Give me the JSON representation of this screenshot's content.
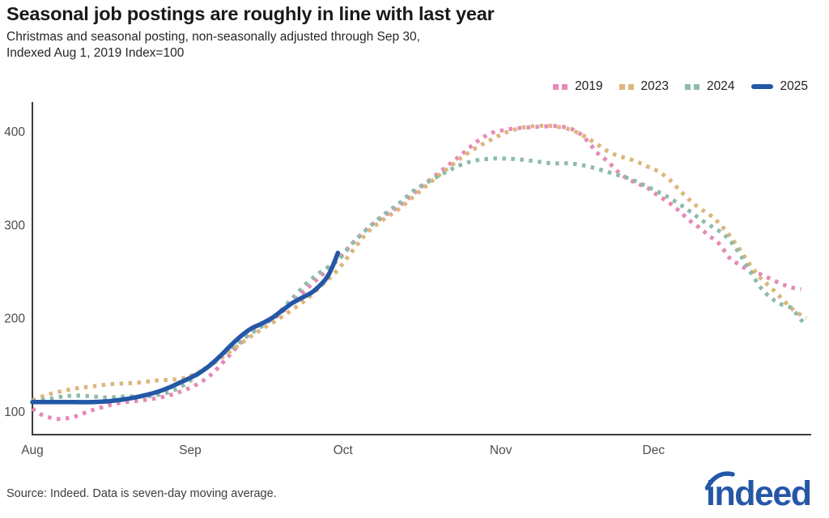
{
  "title": "Seasonal job postings are roughly in line with last year",
  "subtitle_line1": "Christmas and seasonal posting, non-seasonally adjusted through Sep 30,",
  "subtitle_line2": "Indexed Aug 1, 2019 Index=100",
  "source": "Source: Indeed. Data is seven-day moving average.",
  "logo_text": "indeed",
  "colors": {
    "brand_blue": "#2557a7",
    "pink_2019": "#e68ab8",
    "tan_2023": "#dcb67d",
    "teal_2024": "#8ebbac",
    "blue_2025": "#2557a7",
    "spine": "#3b3b3b",
    "tick_text": "#4d4d4d"
  },
  "chart_data": {
    "type": "line",
    "title": "Seasonal job postings are roughly in line with last year",
    "xlabel": "",
    "ylabel": "",
    "x_unit": "days_from_aug_1",
    "xlim": [
      0,
      152
    ],
    "ylim": [
      76,
      430
    ],
    "grid": false,
    "legend_position": "top-right",
    "x_axis": {
      "ticks": [
        {
          "label": "Aug",
          "day": 0
        },
        {
          "label": "Sep",
          "day": 31
        },
        {
          "label": "Oct",
          "day": 61
        },
        {
          "label": "Nov",
          "day": 92
        },
        {
          "label": "Dec",
          "day": 122
        }
      ]
    },
    "y_axis": {
      "ticks": [
        100,
        200,
        300,
        400
      ]
    },
    "series": [
      {
        "name": "2019",
        "style": "dotted",
        "color": "#e68ab8",
        "points": [
          [
            0,
            103
          ],
          [
            2,
            96
          ],
          [
            5,
            92
          ],
          [
            8,
            94
          ],
          [
            11,
            100
          ],
          [
            14,
            105
          ],
          [
            17,
            109
          ],
          [
            20,
            111
          ],
          [
            23,
            113
          ],
          [
            26,
            116
          ],
          [
            29,
            121
          ],
          [
            32,
            128
          ],
          [
            35,
            139
          ],
          [
            38,
            156
          ],
          [
            41,
            174
          ],
          [
            43,
            185
          ],
          [
            45,
            193
          ],
          [
            48,
            202
          ],
          [
            51,
            217
          ],
          [
            54,
            232
          ],
          [
            57,
            247
          ],
          [
            60,
            263
          ],
          [
            63,
            281
          ],
          [
            66,
            297
          ],
          [
            69,
            309
          ],
          [
            72,
            320
          ],
          [
            75,
            334
          ],
          [
            78,
            348
          ],
          [
            81,
            361
          ],
          [
            84,
            374
          ],
          [
            87,
            388
          ],
          [
            90,
            398
          ],
          [
            93,
            402
          ],
          [
            96,
            404
          ],
          [
            99,
            405
          ],
          [
            103,
            406
          ],
          [
            105,
            404
          ],
          [
            107,
            400
          ],
          [
            109,
            390
          ],
          [
            111,
            377
          ],
          [
            113,
            368
          ],
          [
            115,
            357
          ],
          [
            117,
            349
          ],
          [
            119,
            344
          ],
          [
            121,
            339
          ],
          [
            123,
            331
          ],
          [
            125,
            324
          ],
          [
            127,
            315
          ],
          [
            129,
            305
          ],
          [
            131,
            297
          ],
          [
            133,
            288
          ],
          [
            135,
            279
          ],
          [
            137,
            264
          ],
          [
            139,
            257
          ],
          [
            141,
            250
          ],
          [
            143,
            247
          ],
          [
            145,
            242
          ],
          [
            147,
            237
          ],
          [
            149,
            233
          ],
          [
            151,
            231
          ]
        ]
      },
      {
        "name": "2023",
        "style": "dotted",
        "color": "#dcb67d",
        "points": [
          [
            0,
            112
          ],
          [
            3,
            118
          ],
          [
            6,
            122
          ],
          [
            9,
            125
          ],
          [
            12,
            127
          ],
          [
            15,
            129
          ],
          [
            18,
            130
          ],
          [
            21,
            131
          ],
          [
            24,
            133
          ],
          [
            27,
            134
          ],
          [
            30,
            136
          ],
          [
            33,
            143
          ],
          [
            36,
            153
          ],
          [
            39,
            165
          ],
          [
            42,
            177
          ],
          [
            45,
            188
          ],
          [
            48,
            198
          ],
          [
            51,
            209
          ],
          [
            54,
            221
          ],
          [
            57,
            236
          ],
          [
            60,
            252
          ],
          [
            63,
            273
          ],
          [
            66,
            293
          ],
          [
            69,
            306
          ],
          [
            72,
            317
          ],
          [
            75,
            331
          ],
          [
            78,
            345
          ],
          [
            81,
            358
          ],
          [
            84,
            371
          ],
          [
            87,
            382
          ],
          [
            90,
            391
          ],
          [
            93,
            399
          ],
          [
            96,
            404
          ],
          [
            99,
            406
          ],
          [
            102,
            406
          ],
          [
            105,
            403
          ],
          [
            107,
            399
          ],
          [
            109,
            393
          ],
          [
            111,
            386
          ],
          [
            113,
            379
          ],
          [
            115,
            374
          ],
          [
            117,
            371
          ],
          [
            119,
            367
          ],
          [
            121,
            362
          ],
          [
            123,
            357
          ],
          [
            125,
            349
          ],
          [
            127,
            338
          ],
          [
            129,
            327
          ],
          [
            131,
            318
          ],
          [
            133,
            311
          ],
          [
            135,
            301
          ],
          [
            137,
            288
          ],
          [
            139,
            273
          ],
          [
            141,
            257
          ],
          [
            143,
            243
          ],
          [
            145,
            233
          ],
          [
            147,
            222
          ],
          [
            149,
            211
          ],
          [
            151,
            203
          ],
          [
            152,
            200
          ]
        ]
      },
      {
        "name": "2024",
        "style": "dotted",
        "color": "#8ebbac",
        "points": [
          [
            0,
            111
          ],
          [
            3,
            113
          ],
          [
            6,
            116
          ],
          [
            9,
            117
          ],
          [
            12,
            116
          ],
          [
            15,
            115
          ],
          [
            18,
            116
          ],
          [
            21,
            116
          ],
          [
            24,
            117
          ],
          [
            27,
            121
          ],
          [
            29,
            126
          ],
          [
            31,
            133
          ],
          [
            33,
            142
          ],
          [
            36,
            155
          ],
          [
            39,
            168
          ],
          [
            42,
            180
          ],
          [
            45,
            191
          ],
          [
            48,
            204
          ],
          [
            51,
            221
          ],
          [
            54,
            238
          ],
          [
            57,
            251
          ],
          [
            60,
            262
          ],
          [
            63,
            281
          ],
          [
            66,
            297
          ],
          [
            69,
            311
          ],
          [
            72,
            323
          ],
          [
            75,
            337
          ],
          [
            78,
            347
          ],
          [
            81,
            356
          ],
          [
            84,
            364
          ],
          [
            87,
            369
          ],
          [
            90,
            371
          ],
          [
            93,
            371
          ],
          [
            96,
            370
          ],
          [
            99,
            368
          ],
          [
            102,
            366
          ],
          [
            105,
            366
          ],
          [
            108,
            364
          ],
          [
            111,
            360
          ],
          [
            114,
            355
          ],
          [
            117,
            350
          ],
          [
            120,
            343
          ],
          [
            123,
            335
          ],
          [
            126,
            326
          ],
          [
            129,
            315
          ],
          [
            132,
            303
          ],
          [
            135,
            293
          ],
          [
            137,
            283
          ],
          [
            139,
            268
          ],
          [
            141,
            250
          ],
          [
            143,
            233
          ],
          [
            145,
            222
          ],
          [
            147,
            215
          ],
          [
            149,
            211
          ],
          [
            151,
            198
          ],
          [
            152,
            192
          ]
        ]
      },
      {
        "name": "2025",
        "style": "solid",
        "color": "#2557a7",
        "points": [
          [
            0,
            110
          ],
          [
            4,
            110
          ],
          [
            8,
            110
          ],
          [
            12,
            110
          ],
          [
            15,
            111
          ],
          [
            18,
            113
          ],
          [
            21,
            116
          ],
          [
            24,
            120
          ],
          [
            27,
            126
          ],
          [
            29,
            131
          ],
          [
            31,
            136
          ],
          [
            33,
            142
          ],
          [
            35,
            150
          ],
          [
            37,
            160
          ],
          [
            39,
            171
          ],
          [
            41,
            181
          ],
          [
            43,
            189
          ],
          [
            45,
            194
          ],
          [
            47,
            200
          ],
          [
            49,
            208
          ],
          [
            51,
            216
          ],
          [
            53,
            222
          ],
          [
            55,
            228
          ],
          [
            57,
            238
          ],
          [
            58,
            245
          ],
          [
            59,
            256
          ],
          [
            60,
            270
          ]
        ]
      }
    ]
  }
}
